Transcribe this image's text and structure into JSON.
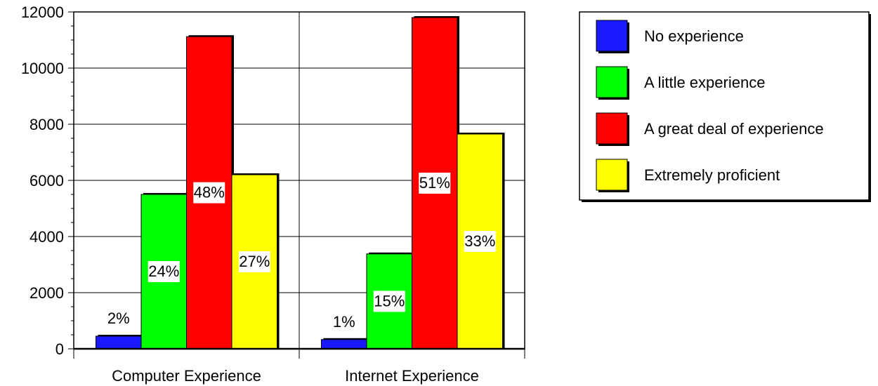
{
  "chart_data": {
    "type": "bar",
    "categories": [
      "Computer Experience",
      "Internet Experience"
    ],
    "series": [
      {
        "name": "No experience",
        "color": "#1a1aff",
        "values": [
          450,
          330
        ],
        "labels": [
          "2%",
          "1%"
        ]
      },
      {
        "name": "A little experience",
        "color": "#00ff00",
        "values": [
          5500,
          3380
        ],
        "labels": [
          "24%",
          "15%"
        ]
      },
      {
        "name": "A great deal of experience",
        "color": "#ff0000",
        "values": [
          11120,
          11800
        ],
        "labels": [
          "48%",
          "51%"
        ]
      },
      {
        "name": "Extremely proficient",
        "color": "#ffff00",
        "values": [
          6200,
          7650
        ],
        "labels": [
          "27%",
          "33%"
        ]
      }
    ],
    "ylim": [
      0,
      12000
    ],
    "yticks": [
      "0",
      "2000",
      "4000",
      "6000",
      "8000",
      "10000",
      "12000"
    ],
    "grid": true,
    "legend_position": "top-right"
  }
}
